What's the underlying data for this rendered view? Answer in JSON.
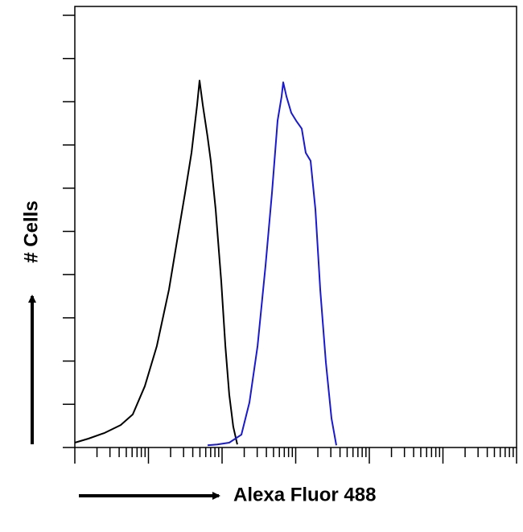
{
  "chart_data": {
    "type": "line",
    "x_label": "Alexa Fluor 488",
    "y_label": "# Cells",
    "xlog": true,
    "xlim": [
      1,
      1000000
    ],
    "ylim": [
      0,
      100
    ],
    "series": [
      {
        "color": "#000000",
        "x": [
          1,
          1.53,
          2.54,
          4.2,
          6.12,
          8.93,
          13.0,
          19.0,
          24.4,
          31.4,
          38.4,
          45.8,
          49.4,
          54.7,
          63.6,
          70.3,
          81.8,
          97.5,
          111,
          125,
          142,
          161
        ],
        "values": [
          1.1,
          2.0,
          3.3,
          5.1,
          7.5,
          13.9,
          23.0,
          35.8,
          46.7,
          57.7,
          66.8,
          77.7,
          83.2,
          77.7,
          70.4,
          64.9,
          54.0,
          37.6,
          23.0,
          12.0,
          4.7,
          0.7
        ]
      },
      {
        "color": "#1a1acc",
        "x": [
          63.6,
          85.9,
          125,
          183,
          235,
          303,
          389,
          476,
          568,
          644,
          677,
          748,
          871,
          1012,
          1208,
          1371,
          1592,
          1853,
          2154,
          2570,
          3062,
          3564
        ],
        "values": [
          0.5,
          0.7,
          1.1,
          2.9,
          10.2,
          23.0,
          41.2,
          57.7,
          74.1,
          79.6,
          82.8,
          79.6,
          75.9,
          74.1,
          72.3,
          66.8,
          65.0,
          54.0,
          35.8,
          19.3,
          6.6,
          0.5
        ]
      }
    ]
  }
}
